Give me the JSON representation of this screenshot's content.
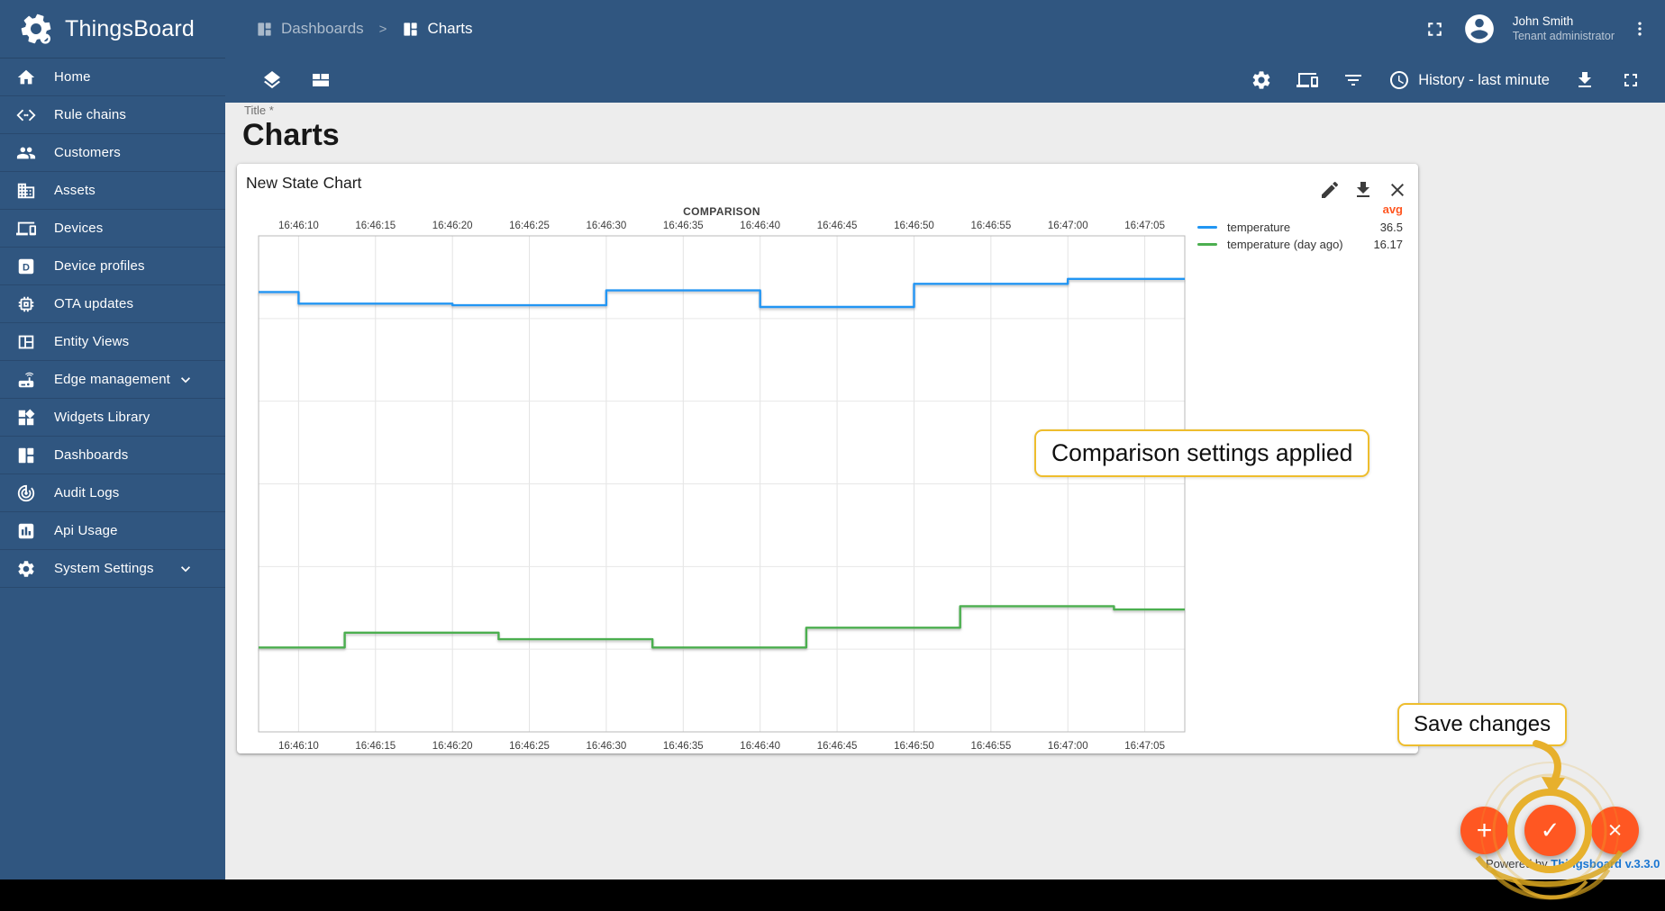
{
  "app": {
    "name": "ThingsBoard",
    "powered_by": "Powered by",
    "powered_link": "Thingsboard v.3.3.0"
  },
  "header": {
    "breadcrumb": {
      "parent": "Dashboards",
      "separator": ">",
      "current": "Charts"
    },
    "user": {
      "name": "John Smith",
      "role": "Tenant administrator"
    }
  },
  "toolbar": {
    "timewindow_label": "History - last minute"
  },
  "sidebar": {
    "items": [
      {
        "label": "Home",
        "icon": "home-icon"
      },
      {
        "label": "Rule chains",
        "icon": "rule-chains-icon"
      },
      {
        "label": "Customers",
        "icon": "customers-icon"
      },
      {
        "label": "Assets",
        "icon": "assets-icon"
      },
      {
        "label": "Devices",
        "icon": "devices-icon"
      },
      {
        "label": "Device profiles",
        "icon": "device-profiles-icon"
      },
      {
        "label": "OTA updates",
        "icon": "ota-updates-icon"
      },
      {
        "label": "Entity Views",
        "icon": "entity-views-icon"
      },
      {
        "label": "Edge management",
        "icon": "edge-management-icon",
        "expandable": true
      },
      {
        "label": "Widgets Library",
        "icon": "widgets-library-icon"
      },
      {
        "label": "Dashboards",
        "icon": "dashboards-icon"
      },
      {
        "label": "Audit Logs",
        "icon": "audit-logs-icon"
      },
      {
        "label": "Api Usage",
        "icon": "api-usage-icon"
      },
      {
        "label": "System Settings",
        "icon": "system-settings-icon",
        "expandable": true
      }
    ]
  },
  "page": {
    "title_label": "Title *",
    "title_value": "Charts"
  },
  "widget": {
    "title": "New State Chart"
  },
  "chart_data": {
    "type": "line",
    "step": "after",
    "title": "COMPARISON",
    "x_ticks": [
      "16:46:10",
      "16:46:15",
      "16:46:20",
      "16:46:25",
      "16:46:30",
      "16:46:35",
      "16:46:40",
      "16:46:45",
      "16:46:50",
      "16:46:55",
      "16:47:00",
      "16:47:05"
    ],
    "x_tick_seconds": [
      10,
      15,
      20,
      25,
      30,
      35,
      40,
      45,
      50,
      55,
      60,
      65
    ],
    "x_window_seconds": [
      7.4,
      67.6
    ],
    "ylim": [
      10,
      40
    ],
    "y_gridlines": [
      15,
      20,
      25,
      30,
      35
    ],
    "grid": true,
    "legend_position": "right",
    "legend_header": "avg",
    "series": [
      {
        "name": "temperature",
        "color": "#2196f3",
        "avg": "36.5",
        "points": [
          [
            7.4,
            36.6
          ],
          [
            10,
            35.9
          ],
          [
            20,
            35.8
          ],
          [
            30,
            36.7
          ],
          [
            40,
            35.7
          ],
          [
            50,
            37.1
          ],
          [
            60,
            37.4
          ]
        ]
      },
      {
        "name": "temperature (day ago)",
        "color": "#4caf50",
        "avg": "16.17",
        "points": [
          [
            7.4,
            15.1
          ],
          [
            13,
            16.0
          ],
          [
            23,
            15.6
          ],
          [
            33,
            15.1
          ],
          [
            43,
            16.3
          ],
          [
            53,
            17.6
          ],
          [
            63,
            17.4
          ]
        ]
      }
    ]
  },
  "annotations": {
    "comparison_tooltip": "Comparison settings applied",
    "save_tooltip": "Save changes"
  },
  "fabs": {
    "add": "+",
    "check": "✓",
    "close": "×"
  },
  "colors": {
    "primary": "#305680",
    "accent": "#ff5722",
    "series1": "#2196f3",
    "series2": "#4caf50",
    "annotation": "#e7b02c",
    "link": "#1976d2",
    "tooltip_border": "#eebd2d"
  }
}
